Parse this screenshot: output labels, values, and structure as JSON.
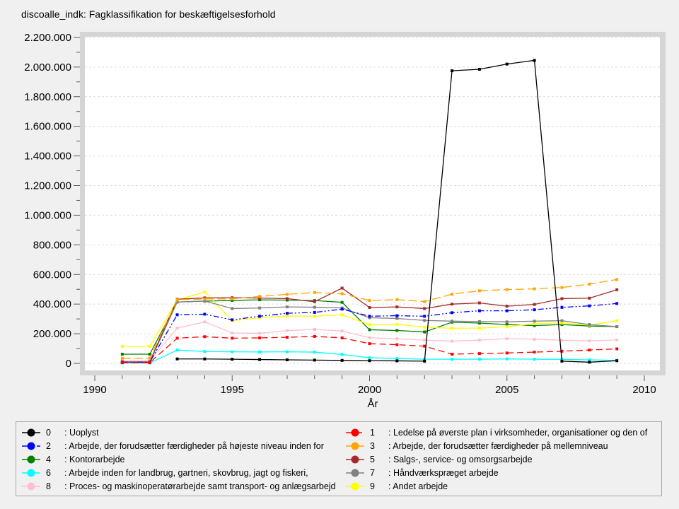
{
  "chart_data": {
    "type": "line",
    "title": "discoalle_indk: Fagklassifikation for beskæftigelsesforhold",
    "xlabel": "År",
    "ylabel": "",
    "x_range": [
      1990,
      2010
    ],
    "xticks_major": [
      1990,
      1995,
      2000,
      2005,
      2010
    ],
    "xtick_minor_every": 1,
    "ylim": [
      0,
      2200000
    ],
    "ytick_step": 200000,
    "ytick_labels": [
      "0",
      "200.000",
      "400.000",
      "600.000",
      "800.000",
      "1.000.000",
      "1.200.000",
      "1.400.000",
      "1.600.000",
      "1.800.000",
      "2.000.000",
      "2.200.000"
    ],
    "grid": "horizontal-major-dashed",
    "legend_position": "bottom-two-columns",
    "frame_color": "#d5d5d5",
    "plot_bg_color": "#ffffff",
    "grid_color": "#dcdcdc",
    "tick_color": "#5a5a5a",
    "x": [
      1991,
      1992,
      1993,
      1994,
      1995,
      1996,
      1997,
      1998,
      1999,
      2000,
      2001,
      2002,
      2003,
      2004,
      2005,
      2006,
      2007,
      2008,
      2009
    ],
    "draw_order": [
      "8",
      "6",
      "4",
      "9",
      "7",
      "5",
      "3",
      "2",
      "1",
      "0"
    ],
    "series": [
      {
        "id": "0",
        "legend_number": "0",
        "legend_label": ": Uoplyst",
        "name": "Uoplyst",
        "color": "#000000",
        "dash": null,
        "values": [
          null,
          null,
          30000,
          30000,
          28000,
          26000,
          24000,
          22000,
          20000,
          18000,
          17000,
          15000,
          1975000,
          1985000,
          2020000,
          2045000,
          15000,
          8000,
          18000
        ]
      },
      {
        "id": "1",
        "legend_number": "1",
        "legend_label": ": Ledelse på øverste plan i virksomheder, organisationer og den of",
        "name": "Ledelse på øverste plan",
        "color": "#ff0000",
        "dash": [
          9,
          5
        ],
        "values": [
          5000,
          5000,
          170000,
          180000,
          170000,
          172000,
          176000,
          182000,
          172000,
          133000,
          126000,
          116000,
          62000,
          66000,
          70000,
          76000,
          82000,
          90000,
          98000
        ]
      },
      {
        "id": "2",
        "legend_number": "2",
        "legend_label": ": Arbejde, der forudsætter færdigheder på højeste niveau inden for",
        "name": "Færdigheder på højeste niveau",
        "color": "#0000ff",
        "dash": [
          8,
          3,
          2,
          3,
          2,
          3
        ],
        "values": [
          8000,
          8000,
          328000,
          332000,
          294000,
          318000,
          338000,
          344000,
          366000,
          318000,
          322000,
          318000,
          342000,
          355000,
          355000,
          362000,
          378000,
          388000,
          404000
        ]
      },
      {
        "id": "3",
        "legend_number": "3",
        "legend_label": ": Arbejde, der forudsætter færdigheder på mellemniveau",
        "name": "Færdigheder på mellemniveau",
        "color": "#ffa500",
        "dash": [
          12,
          5
        ],
        "values": [
          35000,
          35000,
          430000,
          434000,
          436000,
          452000,
          466000,
          478000,
          470000,
          424000,
          430000,
          417000,
          467000,
          490000,
          498000,
          503000,
          512000,
          535000,
          566000
        ]
      },
      {
        "id": "4",
        "legend_number": "4",
        "legend_label": ": Kontorarbejde",
        "name": "Kontorarbejde",
        "color": "#008000",
        "dash": null,
        "values": [
          62000,
          62000,
          414000,
          420000,
          425000,
          429000,
          427000,
          424000,
          412000,
          227000,
          222000,
          212000,
          278000,
          272000,
          262000,
          255000,
          262000,
          252000,
          248000
        ]
      },
      {
        "id": "5",
        "legend_number": "5",
        "legend_label": ": Salgs-, service- og omsorgsarbejde",
        "name": "Salgs-, service- og omsorgsarbejde",
        "color": "#a52a2a",
        "dash": null,
        "values": [
          10000,
          10000,
          433000,
          442000,
          443000,
          441000,
          437000,
          416000,
          508000,
          377000,
          381000,
          370000,
          400000,
          408000,
          386000,
          398000,
          437000,
          440000,
          497000
        ]
      },
      {
        "id": "6",
        "legend_number": "6",
        "legend_label": ": Arbejde inden for landbrug, gartneri, skovbrug, jagt og fiskeri,",
        "name": "Landbrug m.m.",
        "color": "#00ffff",
        "dash": null,
        "values": [
          2000,
          2000,
          90000,
          80000,
          78000,
          77000,
          78000,
          76000,
          60000,
          38000,
          33000,
          28000,
          28000,
          28000,
          30000,
          28000,
          27000,
          24000,
          20000
        ]
      },
      {
        "id": "7",
        "legend_number": "7",
        "legend_label": ": Håndværkspræget arbejde",
        "name": "Håndværkspræget arbejde",
        "color": "#808080",
        "dash": null,
        "values": [
          8000,
          8000,
          414000,
          421000,
          370000,
          374000,
          381000,
          379000,
          374000,
          308000,
          303000,
          290000,
          285000,
          282000,
          280000,
          285000,
          288000,
          262000,
          248000
        ]
      },
      {
        "id": "8",
        "legend_number": "8",
        "legend_label": ": Proces- og maskinoperatørarbejde samt transport- og anlægsarbejd",
        "name": "Proces- og maskinoperatørarbejde",
        "color": "#ffc0cb",
        "dash": null,
        "values": [
          18000,
          18000,
          238000,
          280000,
          205000,
          203000,
          221000,
          229000,
          219000,
          173000,
          166000,
          157000,
          150000,
          157000,
          167000,
          163000,
          156000,
          152000,
          158000
        ]
      },
      {
        "id": "9",
        "legend_number": "9",
        "legend_label": ": Andet arbejde",
        "name": "Andet arbejde",
        "color": "#ffff00",
        "dash": null,
        "values": [
          115000,
          115000,
          428000,
          482000,
          287000,
          308000,
          320000,
          318000,
          328000,
          261000,
          264000,
          244000,
          237000,
          238000,
          247000,
          268000,
          273000,
          258000,
          288000
        ]
      }
    ]
  },
  "legend": {
    "columns": [
      [
        "0",
        "2",
        "4",
        "6",
        "8"
      ],
      [
        "1",
        "3",
        "5",
        "7",
        "9"
      ]
    ]
  }
}
